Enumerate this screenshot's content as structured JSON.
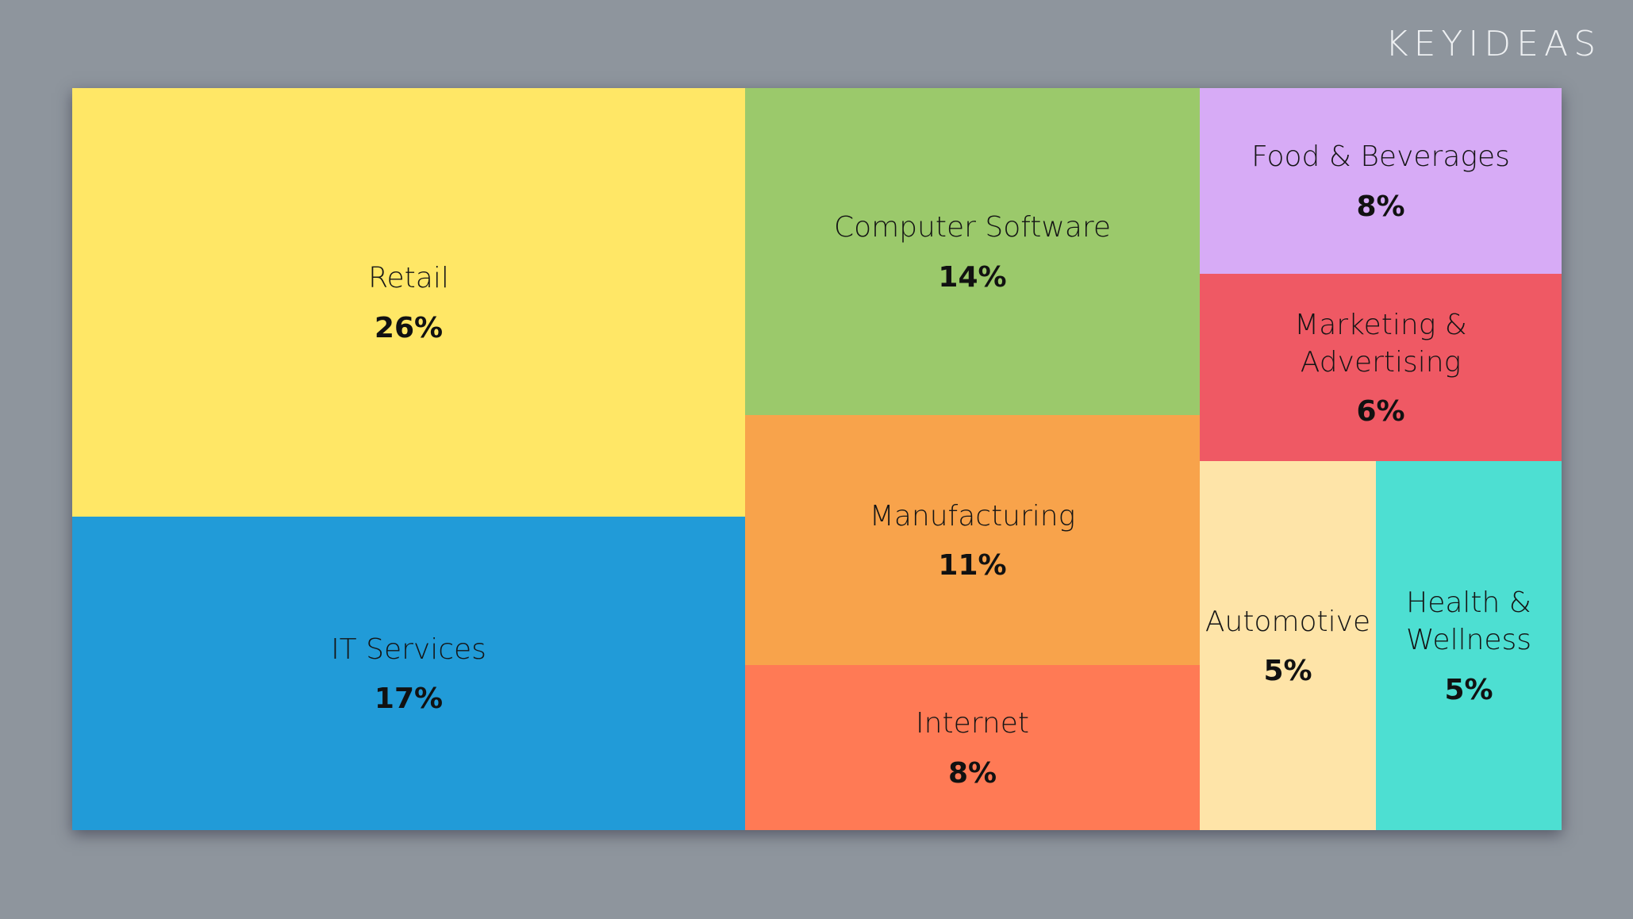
{
  "brand": "KEYIDEAS",
  "chart_data": {
    "type": "treemap",
    "categories": [
      "Retail",
      "IT Services",
      "Computer Software",
      "Manufacturing",
      "Internet",
      "Food & Beverages",
      "Marketing & Advertising",
      "Automotive",
      "Health & Wellness"
    ],
    "values": [
      26,
      17,
      14,
      11,
      8,
      8,
      6,
      5,
      5
    ],
    "value_labels": [
      "26%",
      "17%",
      "14%",
      "11%",
      "8%",
      "8%",
      "6%",
      "5%",
      "5%"
    ],
    "unit": "%",
    "colors": [
      "#ffe766",
      "#219bd8",
      "#9bc96b",
      "#f8a34b",
      "#ff7a55",
      "#d7abf6",
      "#ef5964",
      "#fee4a8",
      "#4ddfd2"
    ]
  }
}
